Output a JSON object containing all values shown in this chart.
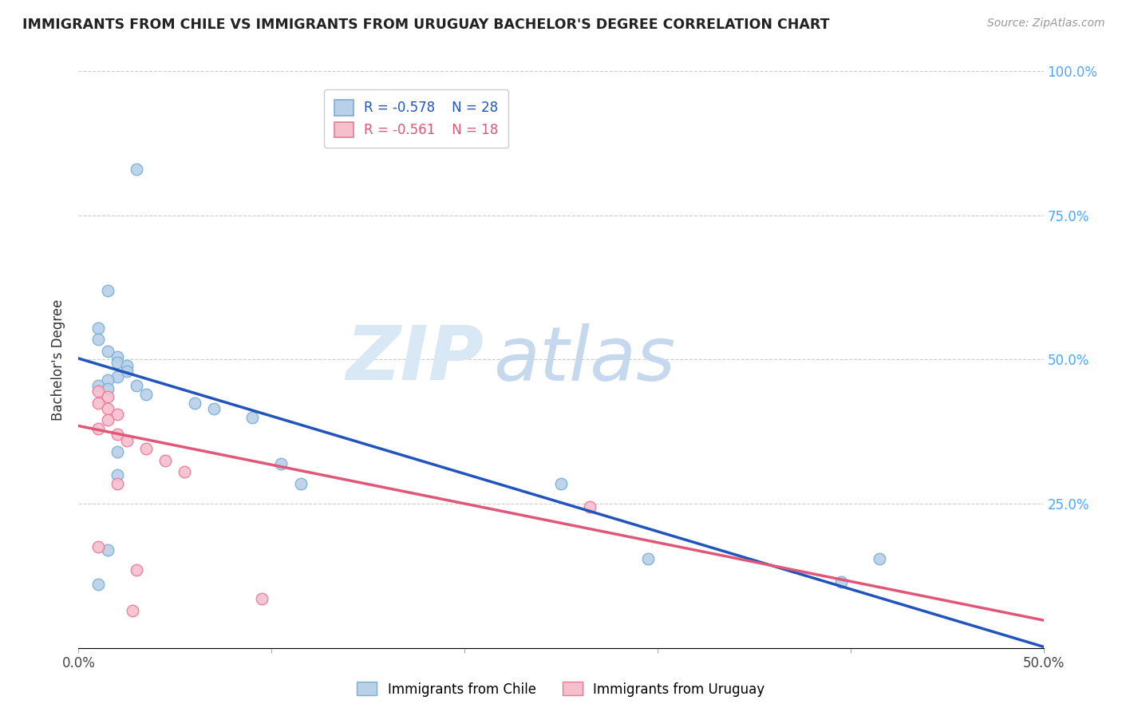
{
  "title": "IMMIGRANTS FROM CHILE VS IMMIGRANTS FROM URUGUAY BACHELOR'S DEGREE CORRELATION CHART",
  "source": "Source: ZipAtlas.com",
  "ylabel": "Bachelor's Degree",
  "xlim": [
    0.0,
    0.5
  ],
  "ylim": [
    0.0,
    1.0
  ],
  "x_ticks": [
    0.0,
    0.1,
    0.2,
    0.3,
    0.4,
    0.5
  ],
  "x_tick_labels": [
    "0.0%",
    "",
    "",
    "",
    "",
    "50.0%"
  ],
  "y_ticks_right": [
    0.0,
    0.25,
    0.5,
    0.75,
    1.0
  ],
  "y_tick_labels_right": [
    "",
    "25.0%",
    "50.0%",
    "75.0%",
    "100.0%"
  ],
  "grid_color": "#cccccc",
  "background_color": "#ffffff",
  "watermark_zip": "ZIP",
  "watermark_atlas": "atlas",
  "chile_color": "#b8d0e8",
  "chile_edge": "#7aafd4",
  "uruguay_color": "#f5bfcc",
  "uruguay_edge": "#e87a99",
  "chile_line_color": "#2255bb",
  "uruguay_line_color": "#e05878",
  "legend_R_chile": "R = -0.578",
  "legend_N_chile": "N = 28",
  "legend_R_uruguay": "R = -0.561",
  "legend_N_uruguay": "N = 18",
  "legend_label_chile": "Immigrants from Chile",
  "legend_label_uruguay": "Immigrants from Uruguay",
  "chile_x": [
    0.03,
    0.015,
    0.01,
    0.01,
    0.015,
    0.02,
    0.02,
    0.025,
    0.025,
    0.02,
    0.015,
    0.01,
    0.015,
    0.03,
    0.035,
    0.06,
    0.07,
    0.09,
    0.105,
    0.115,
    0.25,
    0.295,
    0.415,
    0.395,
    0.02,
    0.02,
    0.01,
    0.015
  ],
  "chile_y": [
    0.83,
    0.62,
    0.555,
    0.535,
    0.515,
    0.505,
    0.495,
    0.49,
    0.48,
    0.47,
    0.465,
    0.455,
    0.45,
    0.455,
    0.44,
    0.425,
    0.415,
    0.4,
    0.32,
    0.285,
    0.285,
    0.155,
    0.155,
    0.115,
    0.34,
    0.3,
    0.11,
    0.17
  ],
  "uruguay_x": [
    0.01,
    0.015,
    0.01,
    0.015,
    0.02,
    0.015,
    0.01,
    0.02,
    0.025,
    0.035,
    0.045,
    0.055,
    0.02,
    0.01,
    0.265,
    0.03,
    0.095,
    0.028
  ],
  "uruguay_y": [
    0.445,
    0.435,
    0.425,
    0.415,
    0.405,
    0.395,
    0.38,
    0.37,
    0.36,
    0.345,
    0.325,
    0.305,
    0.285,
    0.175,
    0.245,
    0.135,
    0.085,
    0.065
  ],
  "chile_line_x0": 0.0,
  "chile_line_x1": 0.5,
  "chile_line_y0": 0.502,
  "chile_line_y1": 0.002,
  "uruguay_line_x0": 0.0,
  "uruguay_line_x1": 0.5,
  "uruguay_line_y0": 0.385,
  "uruguay_line_y1": 0.048
}
